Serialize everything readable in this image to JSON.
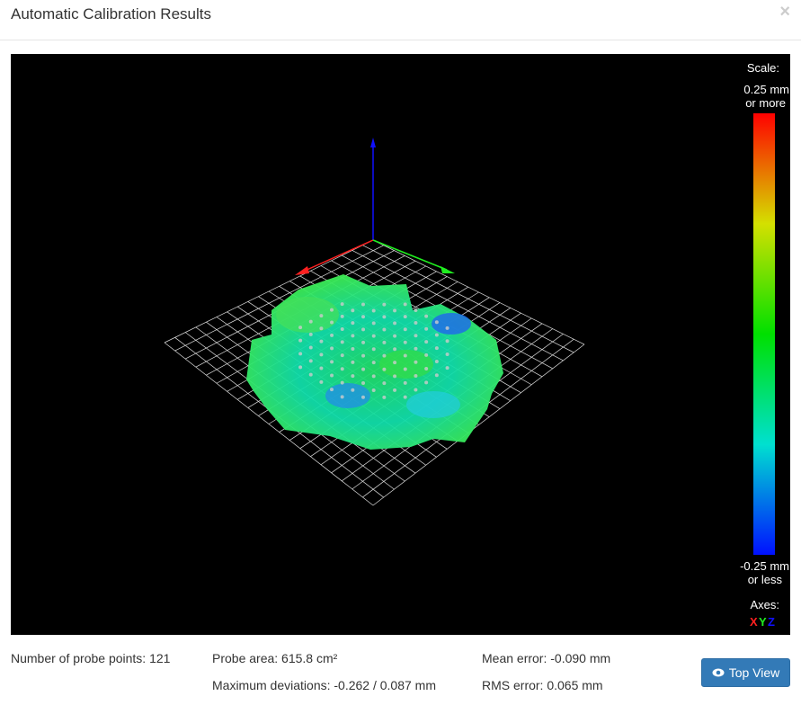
{
  "header": {
    "title": "Automatic Calibration Results",
    "close": "×"
  },
  "scale": {
    "label": "Scale:",
    "top": [
      "0.25 mm",
      "or more"
    ],
    "bottom": [
      "-0.25 mm",
      "or less"
    ],
    "axes_label": "Axes:",
    "axes": [
      "X",
      "Y",
      "Z"
    ]
  },
  "footer": {
    "probe_points": "Number of probe points: 121",
    "probe_area": "Probe area: 615.8 cm²",
    "max_deviations": "Maximum deviations: -0.262 / 0.087 mm",
    "mean_error": "Mean error: -0.090 mm",
    "rms_error": "RMS error: 0.065 mm",
    "button": "Top View"
  }
}
